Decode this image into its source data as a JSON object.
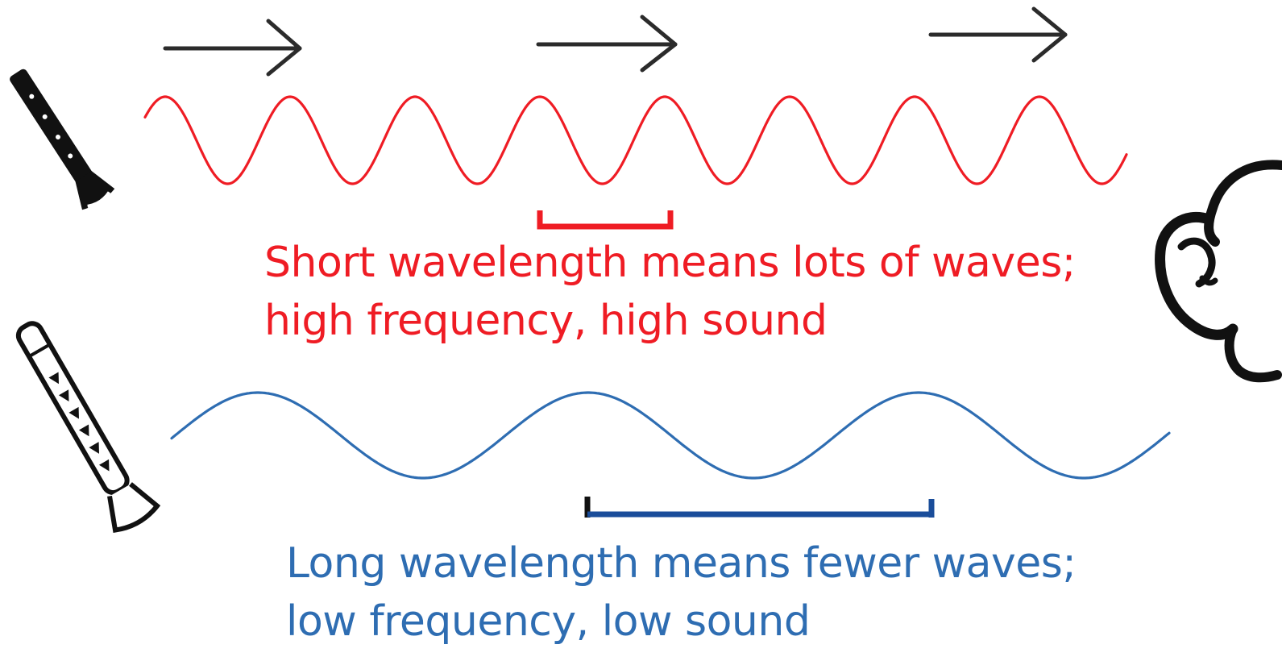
{
  "colors": {
    "high": "#ef1c24",
    "low": "#2e6db2",
    "low_bracket": "#1a4d9a",
    "ink": "#111111",
    "arrow": "#2b2b2b"
  },
  "icons": [
    "arrow-right-icon",
    "flute-icon",
    "recorder-icon",
    "listener-head-icon"
  ],
  "short_wave": {
    "caption_line1": "Short wavelength means lots of waves;",
    "caption_line2": "high frequency, high sound"
  },
  "long_wave": {
    "caption_line1": "Long wavelength means fewer waves;",
    "caption_line2": "low frequency, low sound"
  }
}
